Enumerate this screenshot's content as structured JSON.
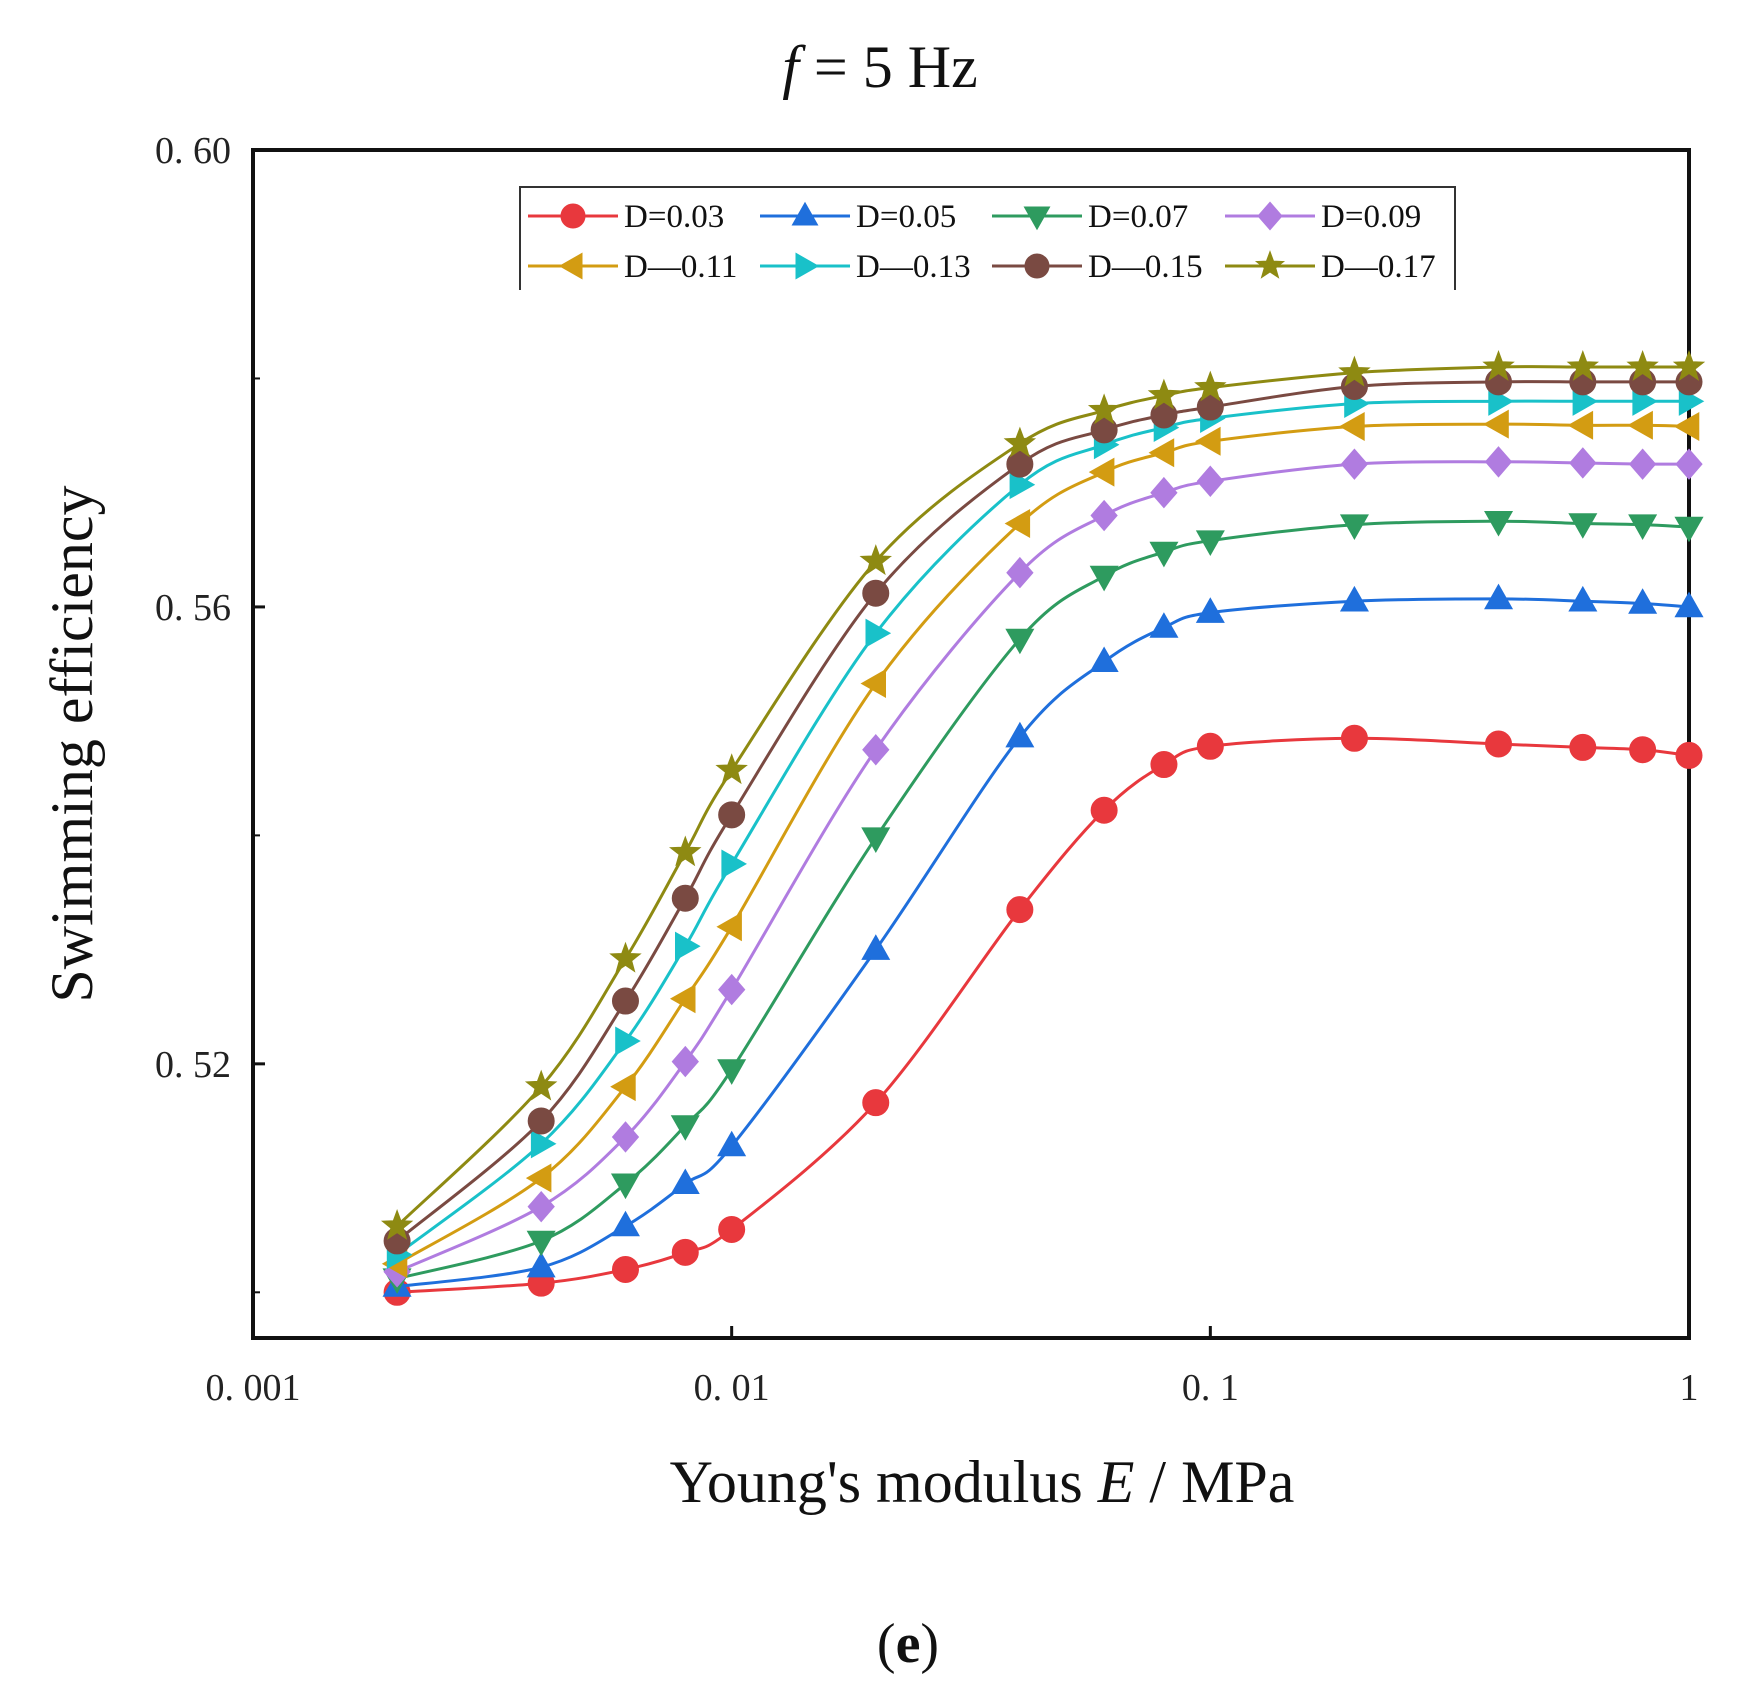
{
  "chart_data": {
    "type": "line",
    "title": "f = 5 Hz",
    "title_italic_part": "f",
    "title_rest": " = 5 Hz",
    "xlabel": "Young's modulus E / MPa",
    "xlabel_parts": [
      "Young's modulus ",
      "E",
      " / MPa"
    ],
    "ylabel": "Swimming efficiency",
    "xscale": "log",
    "xlim": [
      0.001,
      1
    ],
    "ylim": [
      0.496,
      0.6
    ],
    "x_ticks": [
      0.001,
      0.01,
      0.1,
      1
    ],
    "x_tick_labels": [
      "0. 001",
      "0. 01",
      "0. 1",
      "1"
    ],
    "y_ticks": [
      0.52,
      0.56,
      0.6
    ],
    "y_tick_labels": [
      "0. 52",
      "0. 56",
      "0. 60"
    ],
    "grid": false,
    "legend_position": "top",
    "x": [
      0.002,
      0.004,
      0.006,
      0.008,
      0.01,
      0.02,
      0.04,
      0.06,
      0.08,
      0.1,
      0.2,
      0.4,
      0.6,
      0.8,
      1.0
    ],
    "series": [
      {
        "name": "D=0.03",
        "color": "#e8383d",
        "marker": "circle",
        "values": [
          0.5,
          0.5008,
          0.502,
          0.5035,
          0.5055,
          0.5166,
          0.5335,
          0.5422,
          0.5462,
          0.5478,
          0.5485,
          0.548,
          0.5477,
          0.5475,
          0.547
        ]
      },
      {
        "name": "D=0.05",
        "color": "#1f6fdc",
        "marker": "triangle-up",
        "values": [
          0.5005,
          0.5022,
          0.5058,
          0.5095,
          0.5128,
          0.53,
          0.5486,
          0.5552,
          0.5582,
          0.5595,
          0.5605,
          0.5607,
          0.5605,
          0.5603,
          0.56
        ]
      },
      {
        "name": "D=0.07",
        "color": "#2e9b5f",
        "marker": "triangle-down",
        "values": [
          0.5012,
          0.5045,
          0.5095,
          0.5146,
          0.5195,
          0.5398,
          0.5572,
          0.5627,
          0.5648,
          0.5658,
          0.5672,
          0.5675,
          0.5673,
          0.5672,
          0.567
        ]
      },
      {
        "name": "D=0.09",
        "color": "#b07ce0",
        "marker": "diamond",
        "values": [
          0.5018,
          0.5075,
          0.5136,
          0.5202,
          0.5265,
          0.5475,
          0.563,
          0.568,
          0.57,
          0.571,
          0.5725,
          0.5727,
          0.5726,
          0.5725,
          0.5725
        ]
      },
      {
        "name": "D=0.11",
        "color": "#d39c12",
        "marker": "triangle-left",
        "values": [
          0.5025,
          0.51,
          0.518,
          0.5257,
          0.532,
          0.5533,
          0.5673,
          0.5718,
          0.5735,
          0.5745,
          0.5758,
          0.576,
          0.5759,
          0.5759,
          0.5758
        ]
      },
      {
        "name": "D=0.13",
        "color": "#19c1c9",
        "marker": "triangle-right",
        "values": [
          0.5033,
          0.513,
          0.522,
          0.5303,
          0.5375,
          0.5577,
          0.5707,
          0.5742,
          0.5757,
          0.5765,
          0.5778,
          0.578,
          0.578,
          0.578,
          0.578
        ]
      },
      {
        "name": "D=0.15",
        "color": "#7a4a42",
        "marker": "circle",
        "values": [
          0.5045,
          0.515,
          0.5255,
          0.5345,
          0.5418,
          0.5612,
          0.5725,
          0.5755,
          0.5768,
          0.5775,
          0.5793,
          0.5797,
          0.5797,
          0.5797,
          0.5797
        ]
      },
      {
        "name": "D=0.17",
        "color": "#8e8a12",
        "marker": "star",
        "values": [
          0.5058,
          0.518,
          0.5292,
          0.5385,
          0.5457,
          0.564,
          0.5743,
          0.5772,
          0.5785,
          0.5792,
          0.5805,
          0.581,
          0.581,
          0.581,
          0.581
        ]
      }
    ],
    "legend_entries_displayed": [
      "D=0.03",
      "D=0.05",
      "D=0.07",
      "D=0.09",
      "D—0.11",
      "D—0.13",
      "D—0.15",
      "D—0.17"
    ]
  },
  "panel_label": {
    "open": "(",
    "letter": "e",
    "close": ")"
  }
}
